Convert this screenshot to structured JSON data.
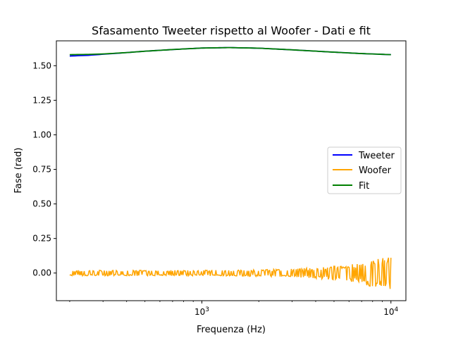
{
  "chart_data": {
    "type": "line",
    "title": "Sfasamento Tweeter rispetto al Woofer - Dati e fit",
    "xlabel": "Frequenza (Hz)",
    "ylabel": "Fase (rad)",
    "xscale": "log",
    "xlim": [
      170,
      12000
    ],
    "ylim": [
      -0.2,
      1.68
    ],
    "x_ticks": [
      {
        "value": 1000,
        "base": "10",
        "exp": "3"
      },
      {
        "value": 10000,
        "base": "10",
        "exp": "4"
      }
    ],
    "y_ticks": [
      {
        "value": 0.0,
        "label": "0.00"
      },
      {
        "value": 0.25,
        "label": "0.25"
      },
      {
        "value": 0.5,
        "label": "0.50"
      },
      {
        "value": 0.75,
        "label": "0.75"
      },
      {
        "value": 1.0,
        "label": "1.00"
      },
      {
        "value": 1.25,
        "label": "1.25"
      },
      {
        "value": 1.5,
        "label": "1.50"
      }
    ],
    "grid": false,
    "legend_position": "center-right",
    "series": [
      {
        "name": "Tweeter",
        "color": "#0000ff",
        "x": [
          200,
          250,
          300,
          400,
          500,
          700,
          1000,
          1400,
          2000,
          3000,
          5000,
          7000,
          10000
        ],
        "y": [
          1.57,
          1.575,
          1.583,
          1.595,
          1.605,
          1.617,
          1.628,
          1.631,
          1.627,
          1.615,
          1.598,
          1.588,
          1.58
        ]
      },
      {
        "name": "Woofer",
        "color": "#ffa500",
        "x": [
          200,
          300,
          500,
          1000,
          2000,
          3000,
          4000,
          5000,
          6000,
          7000,
          8000,
          9000,
          10000
        ],
        "y": [
          0.0,
          0.0,
          0.0,
          0.0,
          0.0,
          0.0,
          0.0,
          0.0,
          0.0,
          0.0,
          0.0,
          0.0,
          0.0
        ],
        "noise_amplitude": [
          0.02,
          0.02,
          0.02,
          0.02,
          0.025,
          0.03,
          0.04,
          0.05,
          0.06,
          0.08,
          0.1,
          0.11,
          0.12
        ]
      },
      {
        "name": "Fit",
        "color": "#008000",
        "x": [
          200,
          250,
          300,
          400,
          500,
          700,
          1000,
          1400,
          2000,
          3000,
          5000,
          7000,
          10000
        ],
        "y": [
          1.58,
          1.582,
          1.585,
          1.595,
          1.605,
          1.617,
          1.628,
          1.631,
          1.627,
          1.615,
          1.598,
          1.588,
          1.58
        ]
      }
    ]
  }
}
